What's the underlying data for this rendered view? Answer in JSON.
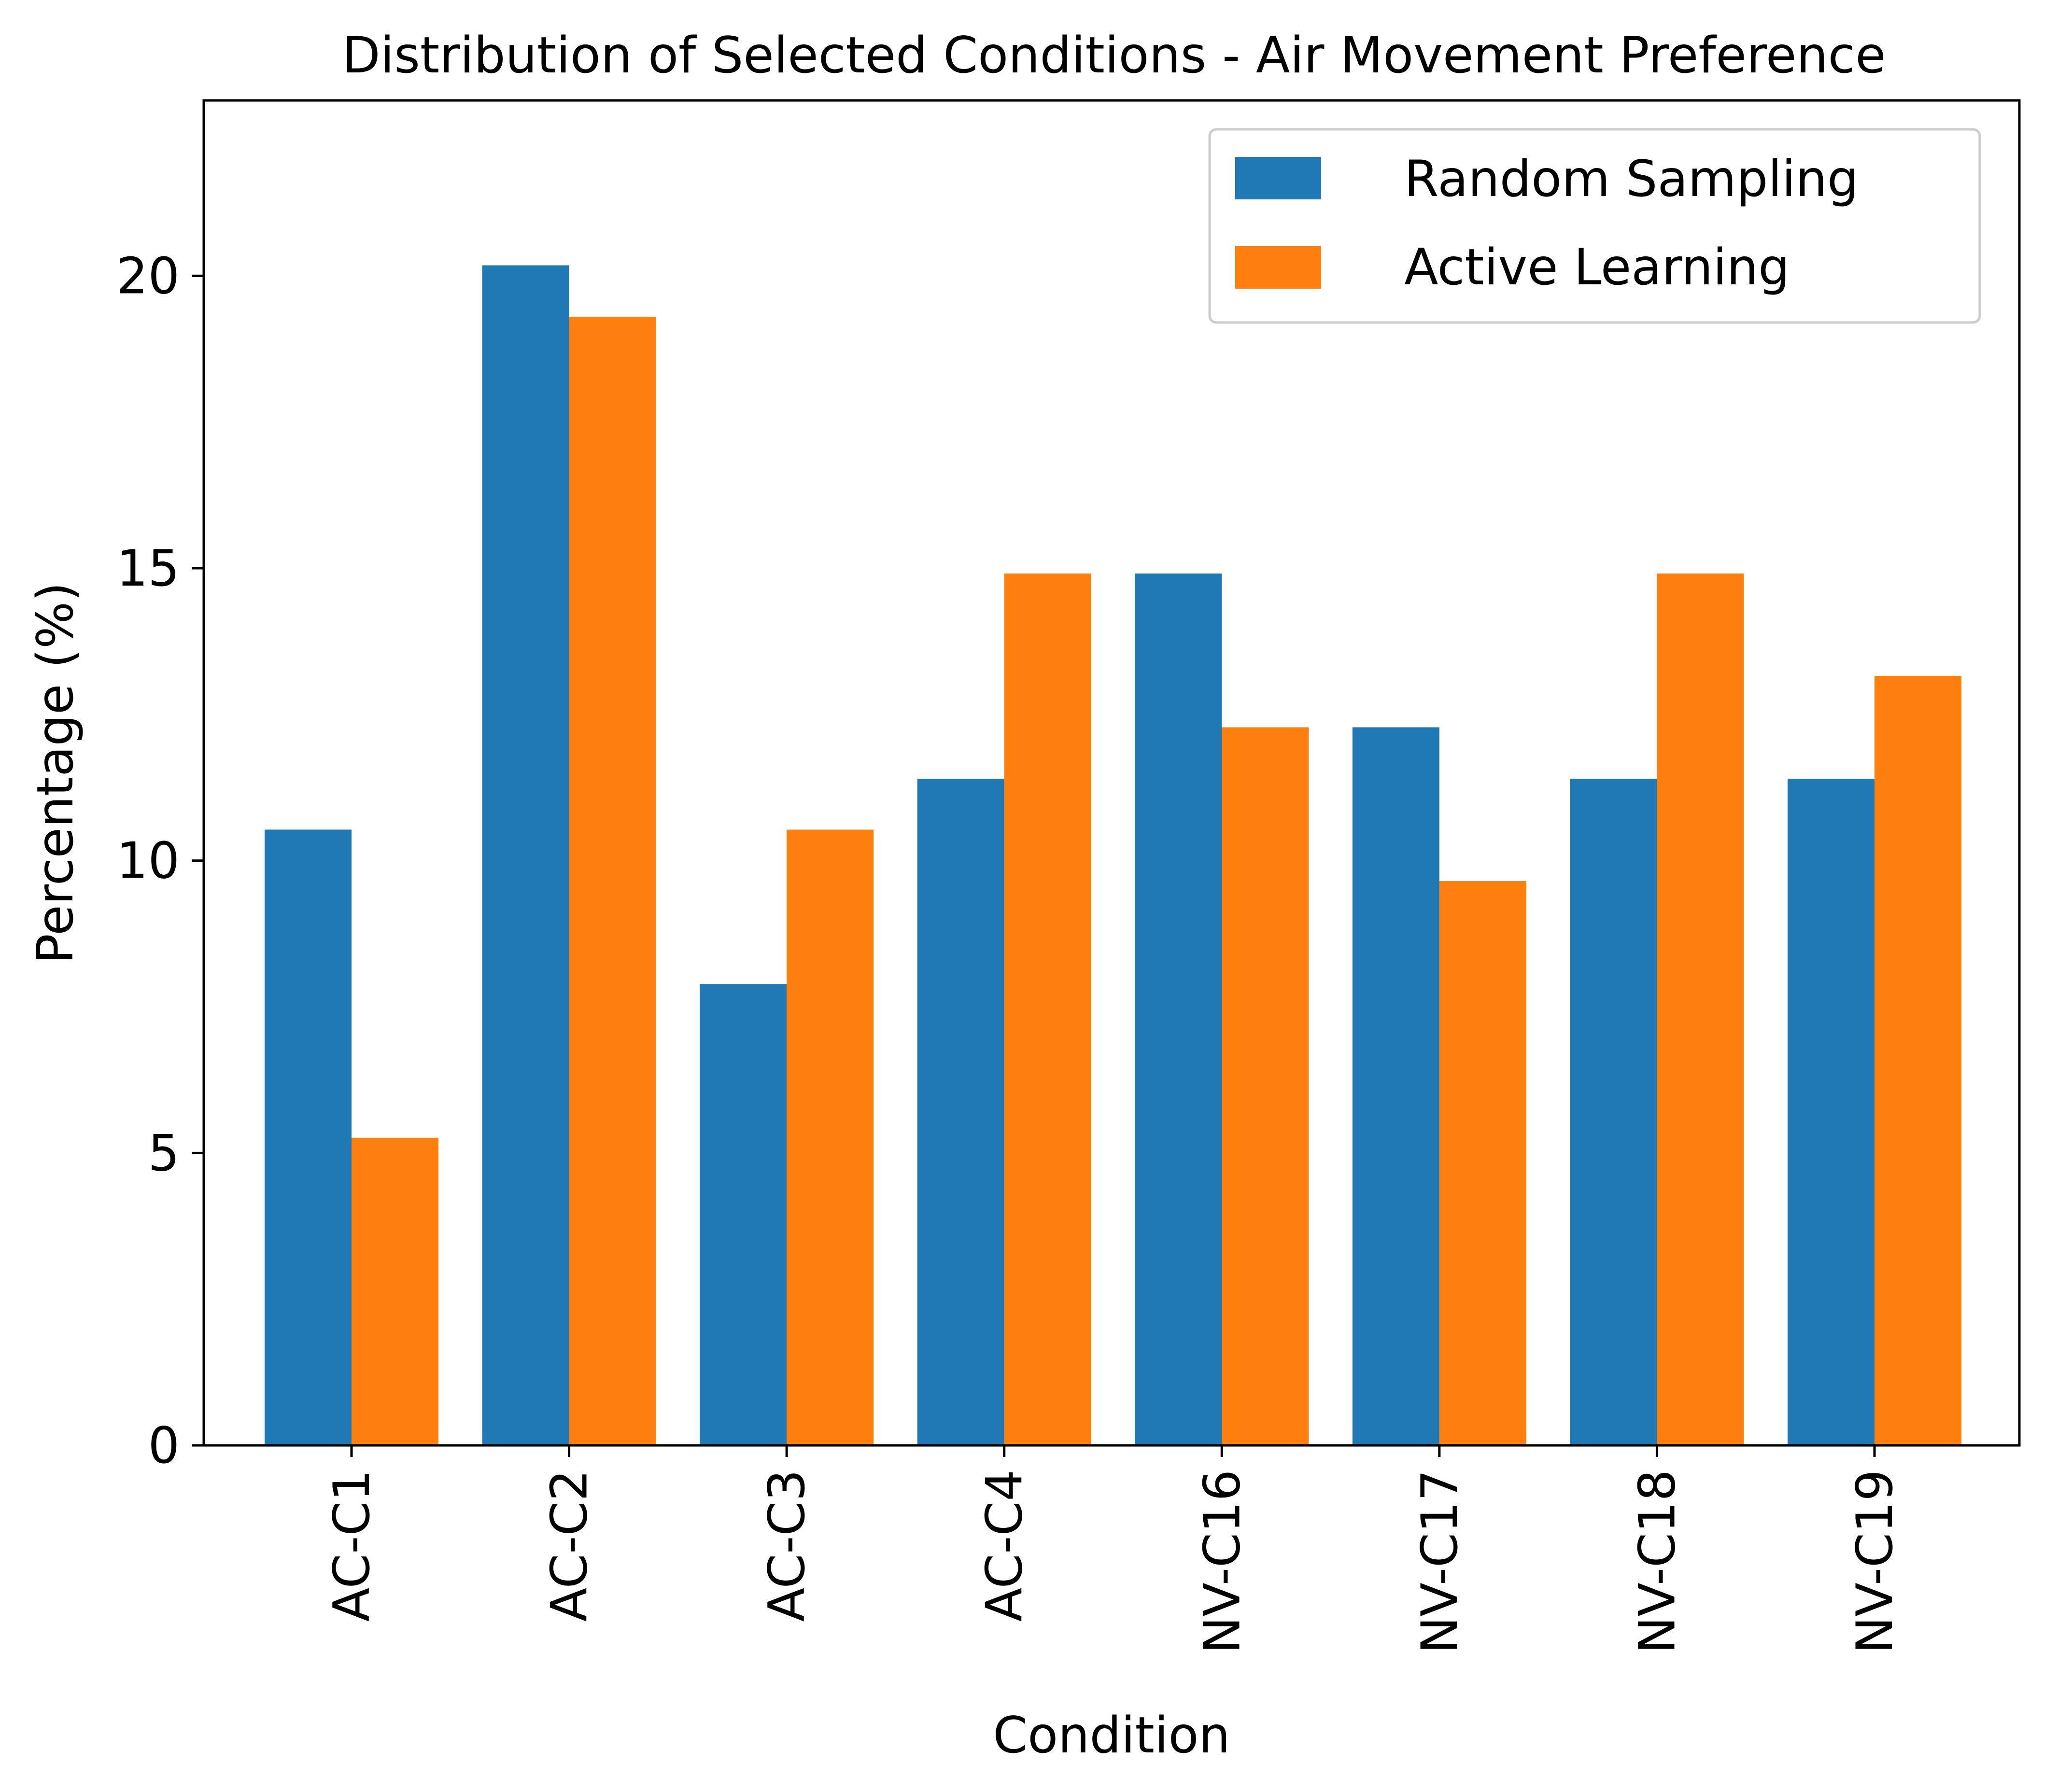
{
  "chart_data": {
    "type": "bar",
    "title": "Distribution of Selected Conditions - Air Movement Preference",
    "xlabel": "Condition",
    "ylabel": "Percentage (%)",
    "categories": [
      "AC-C1",
      "AC-C2",
      "AC-C3",
      "AC-C4",
      "NV-C16",
      "NV-C17",
      "NV-C18",
      "NV-C19"
    ],
    "series": [
      {
        "name": "Random Sampling",
        "color": "#1f77b4",
        "values": [
          10.53,
          20.18,
          7.89,
          11.4,
          14.91,
          12.28,
          11.4,
          11.4
        ]
      },
      {
        "name": "Active Learning",
        "color": "#ff7f0e",
        "values": [
          5.26,
          19.3,
          10.53,
          14.91,
          12.28,
          9.65,
          14.91,
          13.16
        ]
      }
    ],
    "ylim": [
      0,
      23
    ],
    "yticks": [
      0,
      5,
      10,
      15,
      20
    ],
    "grid": false,
    "legend_position": "top-right"
  }
}
